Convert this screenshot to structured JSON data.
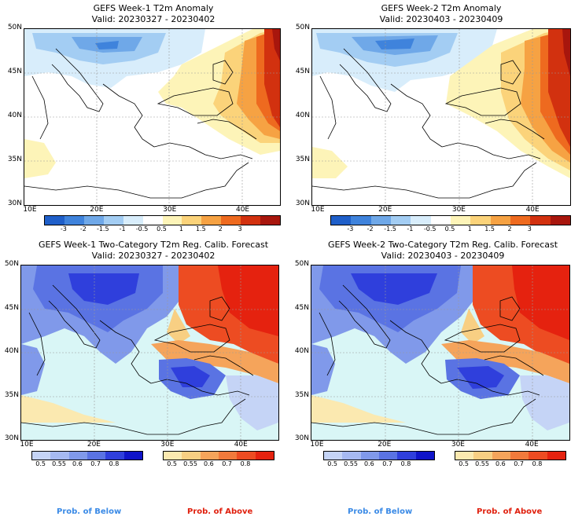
{
  "panels": {
    "p1": {
      "title": "GEFS Week-1 T2m Anomaly",
      "valid": "Valid: 20230327 - 20230402"
    },
    "p2": {
      "title": "GEFS Week-2 T2m Anomaly",
      "valid": "Valid: 20230403 - 20230409"
    },
    "p3": {
      "title": "GEFS Week-1 Two-Category T2m Reg. Calib. Forecast",
      "valid": "Valid: 20230327 - 20230402"
    },
    "p4": {
      "title": "GEFS Week-2 Two-Category T2m Reg. Calib. Forecast",
      "valid": "Valid: 20230403 - 20230409"
    }
  },
  "axes": {
    "lat_labels": [
      "50N",
      "45N",
      "40N",
      "35N",
      "30N"
    ],
    "lon_labels": [
      "10E",
      "20E",
      "30E",
      "40E"
    ]
  },
  "anomaly_scale": {
    "ticks": [
      "-3",
      "-2",
      "-1.5",
      "-1",
      "-0.5",
      "0.5",
      "1",
      "1.5",
      "2",
      "3"
    ],
    "colors": [
      "#1f5fc9",
      "#3f83dc",
      "#6fa8e8",
      "#a3cdf3",
      "#d8edfb",
      "#ffffff",
      "#fdf4b8",
      "#fbd37a",
      "#f6a243",
      "#ee6a1f",
      "#d2310f",
      "#a8160d"
    ]
  },
  "prob_below": {
    "label": "Prob. of Below",
    "ticks": [
      "0.5",
      "0.55",
      "0.6",
      "0.7",
      "0.8"
    ],
    "colors": [
      "#c5d4f6",
      "#a6b9f1",
      "#8099ea",
      "#5a73e3",
      "#2f3fdc",
      "#0f14c9"
    ]
  },
  "prob_above": {
    "label": "Prob. of Above",
    "ticks": [
      "0.5",
      "0.55",
      "0.6",
      "0.7",
      "0.8"
    ],
    "colors": [
      "#fbe9b0",
      "#f8cf83",
      "#f5a45b",
      "#f17a3c",
      "#ed4c22",
      "#e5220f"
    ]
  },
  "map_colors": {
    "sea_light": "#d9f6f6",
    "blue": "#5a73e3",
    "white": "#ffffff",
    "red": "#ee4a22"
  }
}
